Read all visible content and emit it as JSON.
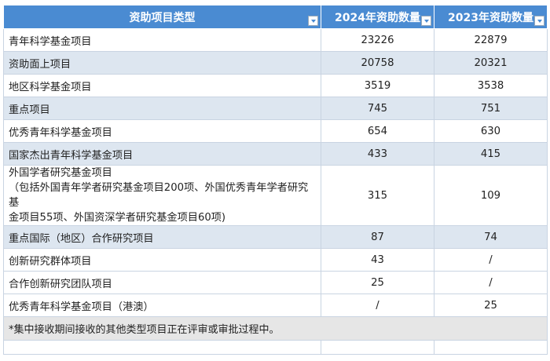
{
  "header": {
    "col_type": "资助项目类型",
    "col_2024": "2024年资助数量",
    "col_2023": "2023年资助数量"
  },
  "rows": [
    {
      "type": "青年科学基金项目",
      "y2024": "23226",
      "y2023": "22879"
    },
    {
      "type": "资助面上项目",
      "y2024": "20758",
      "y2023": "20321"
    },
    {
      "type": "地区科学基金项目",
      "y2024": "3519",
      "y2023": "3538"
    },
    {
      "type": "重点项目",
      "y2024": "745",
      "y2023": "751"
    },
    {
      "type": "优秀青年科学基金项目",
      "y2024": "654",
      "y2023": "630"
    },
    {
      "type": "国家杰出青年科学基金项目",
      "y2024": "433",
      "y2023": "415"
    },
    {
      "type": "外国学者研究基金项目",
      "type_note_1": "（包括外国青年学者研究基金项目200项、外国优秀青年学者研究基",
      "type_note_2": "金项目55项、外国资深学者研究基金项目60项)",
      "y2024": "315",
      "y2023": "109"
    },
    {
      "type": "重点国际（地区）合作研究项目",
      "y2024": "87",
      "y2023": "74"
    },
    {
      "type": "创新研究群体项目",
      "y2024": "43",
      "y2023": "/"
    },
    {
      "type": "合作创新研究团队项目",
      "y2024": "25",
      "y2023": "/"
    },
    {
      "type": "优秀青年科学基金项目（港澳）",
      "y2024": "/",
      "y2023": "25"
    }
  ],
  "footnote": "*集中接收期间接收的其他类型项目正在评审或审批过程中。"
}
